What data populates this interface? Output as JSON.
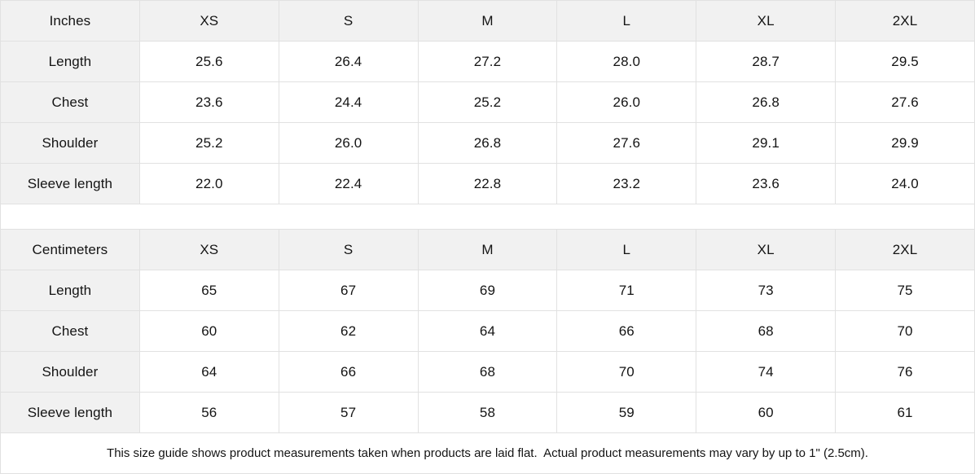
{
  "size_guide": {
    "colors": {
      "header_bg": "#f1f1f1",
      "border": "#e1e1e1",
      "text": "#141414"
    },
    "tables": [
      {
        "unit_label": "Inches",
        "columns": [
          "XS",
          "S",
          "M",
          "L",
          "XL",
          "2XL"
        ],
        "rows": [
          {
            "label": "Length",
            "values": [
              "25.6",
              "26.4",
              "27.2",
              "28.0",
              "28.7",
              "29.5"
            ]
          },
          {
            "label": "Chest",
            "values": [
              "23.6",
              "24.4",
              "25.2",
              "26.0",
              "26.8",
              "27.6"
            ]
          },
          {
            "label": "Shoulder",
            "values": [
              "25.2",
              "26.0",
              "26.8",
              "27.6",
              "29.1",
              "29.9"
            ]
          },
          {
            "label": "Sleeve length",
            "values": [
              "22.0",
              "22.4",
              "22.8",
              "23.2",
              "23.6",
              "24.0"
            ]
          }
        ]
      },
      {
        "unit_label": "Centimeters",
        "columns": [
          "XS",
          "S",
          "M",
          "L",
          "XL",
          "2XL"
        ],
        "rows": [
          {
            "label": "Length",
            "values": [
              "65",
              "67",
              "69",
              "71",
              "73",
              "75"
            ]
          },
          {
            "label": "Chest",
            "values": [
              "60",
              "62",
              "64",
              "66",
              "68",
              "70"
            ]
          },
          {
            "label": "Shoulder",
            "values": [
              "64",
              "66",
              "68",
              "70",
              "74",
              "76"
            ]
          },
          {
            "label": "Sleeve length",
            "values": [
              "56",
              "57",
              "58",
              "59",
              "60",
              "61"
            ]
          }
        ]
      }
    ],
    "footnote": "This size guide shows product measurements taken when products are laid flat.  Actual product measurements may vary by up to 1\" (2.5cm)."
  }
}
